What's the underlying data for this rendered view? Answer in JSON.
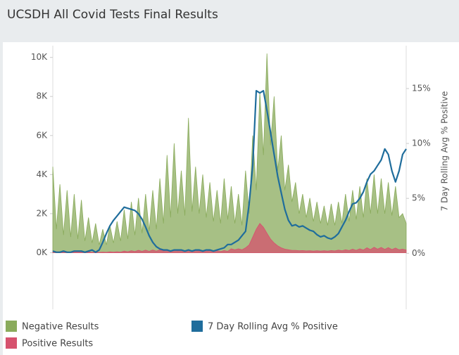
{
  "chart_data": {
    "type": "combo",
    "title": "UCSDH All Covid Tests Final Results",
    "y2_label": "7 Day Rolling Avg % Positive",
    "ylim": [
      -2900,
      10600
    ],
    "yticks": [
      {
        "value": 0,
        "label": "0K"
      },
      {
        "value": 2000,
        "label": "2K"
      },
      {
        "value": 4000,
        "label": "4K"
      },
      {
        "value": 6000,
        "label": "6K"
      },
      {
        "value": 8000,
        "label": "8K"
      },
      {
        "value": 10000,
        "label": "10K"
      }
    ],
    "y2lim": [
      -5.1,
      18.9
    ],
    "y2ticks": [
      {
        "value": 0,
        "label": "0%"
      },
      {
        "value": 5,
        "label": "5%"
      },
      {
        "value": 10,
        "label": "10%"
      },
      {
        "value": 15,
        "label": "15%"
      }
    ],
    "series": [
      {
        "name": "Negative Results",
        "type": "area",
        "color": "#8aab5c",
        "values": [
          4400,
          1200,
          3500,
          900,
          3200,
          800,
          3000,
          700,
          2700,
          600,
          1800,
          500,
          1500,
          400,
          1200,
          400,
          1400,
          500,
          1600,
          600,
          2200,
          700,
          2600,
          900,
          2800,
          1000,
          3000,
          1100,
          3200,
          1200,
          3800,
          1500,
          5000,
          1800,
          5600,
          2000,
          4200,
          1900,
          6900,
          2100,
          4400,
          2000,
          4000,
          1800,
          3600,
          1600,
          3200,
          1500,
          3800,
          1700,
          3400,
          1500,
          3000,
          1400,
          4200,
          2000,
          6000,
          3200,
          8200,
          5000,
          10200,
          5500,
          8000,
          4200,
          6000,
          3200,
          4500,
          2600,
          3600,
          2000,
          3000,
          1800,
          2800,
          1600,
          2600,
          1500,
          2400,
          1400,
          2500,
          1400,
          2600,
          1500,
          3000,
          1600,
          3200,
          1700,
          3400,
          1800,
          3800,
          2000,
          4000,
          2000,
          3800,
          2000,
          3600,
          1900,
          3400,
          1800,
          2000,
          1500
        ]
      },
      {
        "name": "Positive Results",
        "type": "area",
        "color": "#d6526e",
        "values": [
          60,
          40,
          50,
          30,
          50,
          30,
          40,
          30,
          40,
          30,
          40,
          20,
          30,
          20,
          30,
          20,
          40,
          30,
          50,
          30,
          80,
          50,
          100,
          60,
          120,
          70,
          130,
          70,
          140,
          80,
          150,
          90,
          160,
          90,
          150,
          90,
          140,
          80,
          150,
          80,
          130,
          80,
          120,
          70,
          110,
          70,
          100,
          60,
          110,
          70,
          200,
          150,
          200,
          150,
          250,
          400,
          800,
          1200,
          1500,
          1300,
          1000,
          700,
          500,
          350,
          250,
          180,
          150,
          120,
          120,
          100,
          110,
          90,
          100,
          80,
          100,
          80,
          100,
          80,
          110,
          90,
          130,
          100,
          150,
          110,
          180,
          120,
          200,
          140,
          250,
          160,
          280,
          180,
          270,
          170,
          260,
          160,
          240,
          150,
          180,
          140
        ]
      },
      {
        "name": "7 Day Rolling Avg % Positive",
        "type": "line",
        "axis": "y2",
        "color": "#1f6d9c",
        "values": [
          0.2,
          0.1,
          0.1,
          0.2,
          0.1,
          0.1,
          0.2,
          0.2,
          0.2,
          0.1,
          0.2,
          0.3,
          0.1,
          0.3,
          1.0,
          1.8,
          2.5,
          3.0,
          3.4,
          3.8,
          4.2,
          4.1,
          4.0,
          3.9,
          3.6,
          3.1,
          2.4,
          1.6,
          1.0,
          0.6,
          0.4,
          0.3,
          0.3,
          0.2,
          0.3,
          0.3,
          0.3,
          0.2,
          0.3,
          0.2,
          0.3,
          0.3,
          0.2,
          0.3,
          0.3,
          0.2,
          0.3,
          0.4,
          0.5,
          0.8,
          0.8,
          1.0,
          1.2,
          1.6,
          2.0,
          4.5,
          8.0,
          14.8,
          14.6,
          14.8,
          13.0,
          11.0,
          9.0,
          7.0,
          5.5,
          4.0,
          3.0,
          2.5,
          2.6,
          2.4,
          2.5,
          2.3,
          2.1,
          2.0,
          1.7,
          1.5,
          1.6,
          1.4,
          1.3,
          1.5,
          1.8,
          2.4,
          3.0,
          3.8,
          4.5,
          4.6,
          5.0,
          5.6,
          6.5,
          7.2,
          7.5,
          8.0,
          8.5,
          9.5,
          9.0,
          7.5,
          6.5,
          7.5,
          9.0,
          9.5
        ]
      }
    ]
  }
}
